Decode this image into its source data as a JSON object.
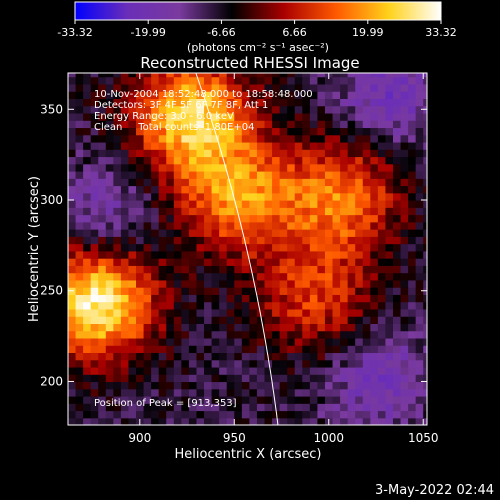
{
  "chart_data": {
    "type": "heatmap",
    "title": "Reconstructed RHESSI Image",
    "xlabel": "Heliocentric X (arcsec)",
    "ylabel": "Heliocentric Y (arcsec)",
    "xlim": [
      862,
      1052
    ],
    "ylim": [
      176,
      370
    ],
    "x_ticks": [
      900,
      950,
      1000,
      1050
    ],
    "y_ticks": [
      200,
      250,
      300,
      350
    ],
    "colorbar": {
      "range": [
        -33.32,
        33.32
      ],
      "tick_labels": [
        "-33.32",
        "-19.99",
        "-6.66",
        "6.66",
        "19.99",
        "33.32"
      ],
      "unit_label": "(photons cm⁻² s⁻¹ asec⁻²)"
    },
    "annotations": [
      "10-Nov-2004 18:52:48.000 to 18:58:48.000",
      "Detectors: 3F 4F 5F 6F 7F 8F, Att 1",
      "Energy Range: 3.0 - 6.0 keV",
      "Clean     Total counts: 1.80E+04"
    ],
    "peak_label": "Position of Peak = [913,353]",
    "peak_position": [
      913,
      353
    ],
    "timestamp": "3-May-2022 02:44",
    "grid": false,
    "approx_intensity_regions": [
      {
        "name": "bright core",
        "x": 875,
        "y": 242,
        "value": 30
      },
      {
        "name": "upper-left emission",
        "x": 925,
        "y": 345,
        "value": 26
      },
      {
        "name": "central ridge",
        "x": 950,
        "y": 300,
        "value": 18
      },
      {
        "name": "right arm",
        "x": 1005,
        "y": 300,
        "value": 16
      },
      {
        "name": "lower right arm",
        "x": 990,
        "y": 245,
        "value": 10
      },
      {
        "name": "left negative lobe",
        "x": 880,
        "y": 290,
        "value": -12
      },
      {
        "name": "upper right negative",
        "x": 1030,
        "y": 355,
        "value": -15
      },
      {
        "name": "lower right negative",
        "x": 1025,
        "y": 200,
        "value": -14
      }
    ]
  },
  "colors": {
    "colorbar_stops": [
      "#0000ff",
      "#6a2eb8",
      "#7a3a9e",
      "#000000",
      "#aa0000",
      "#ff5a00",
      "#ffd21a",
      "#ffffff"
    ]
  }
}
